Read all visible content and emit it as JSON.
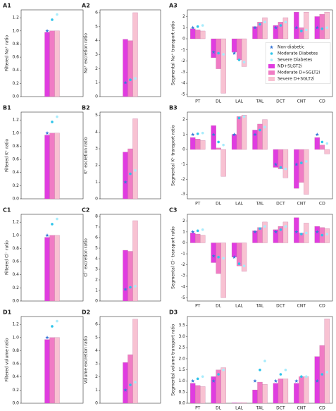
{
  "chart_data": [
    {
      "type": "bar",
      "title": "A1",
      "ylabel": "Filtered Na⁺ ratio",
      "categories": [
        null
      ],
      "ylim": [
        0,
        1.32
      ],
      "yticks": [
        {
          "value": 0,
          "label": "0.0"
        },
        0.2,
        0.4,
        0.6,
        0.8,
        {
          "value": 1,
          "label": "1.0"
        },
        1.2
      ],
      "series": [
        {
          "type": "scatter",
          "marker": "star",
          "color": "#3a78d8",
          "values": [
            1.0
          ]
        },
        {
          "type": "scatter",
          "marker": "circle",
          "color": "#2ec4ea",
          "values": [
            1.17
          ]
        },
        {
          "type": "scatter",
          "marker": "circle",
          "color": "#a8ecfc",
          "values": [
            1.25
          ]
        },
        {
          "type": "bar",
          "color": "#e03ce0",
          "values": [
            0.98
          ]
        },
        {
          "type": "bar",
          "color": "#f07cc4",
          "values": [
            1.0
          ]
        },
        {
          "type": "bar",
          "color": "#f8c2d2",
          "values": [
            1.0
          ]
        }
      ]
    },
    {
      "type": "bar",
      "title": "A2",
      "ylabel": "Na⁺ excretion ratio",
      "categories": [
        null
      ],
      "ylim": [
        0,
        6.2
      ],
      "yticks": [
        0,
        1,
        2,
        3,
        4,
        5,
        6
      ],
      "series": [
        {
          "type": "scatter",
          "marker": "star",
          "color": "#3a78d8",
          "values": [
            1.0
          ]
        },
        {
          "type": "scatter",
          "marker": "circle",
          "color": "#2ec4ea",
          "values": [
            1.2
          ]
        },
        {
          "type": "scatter",
          "marker": "circle",
          "color": "#a8ecfc",
          "values": [
            1.3
          ]
        },
        {
          "type": "bar",
          "color": "#e03ce0",
          "values": [
            4.1
          ]
        },
        {
          "type": "bar",
          "color": "#f07cc4",
          "values": [
            4.0
          ]
        },
        {
          "type": "bar",
          "color": "#f8c2d2",
          "values": [
            6.0
          ]
        }
      ]
    },
    {
      "type": "bar",
      "title": "A3",
      "ylabel": "Segmental Na⁺ transport ratio",
      "categories": [
        "PT",
        "DL",
        "LAL",
        "TAL",
        "DCT",
        "CNT",
        "CD"
      ],
      "ylim": [
        -5.2,
        2.6
      ],
      "yticks": [
        -5,
        -4,
        -3,
        -2,
        -1,
        0,
        1,
        2
      ],
      "legend": "center right",
      "series": [
        {
          "name": "Non-diabetic",
          "type": "scatter",
          "marker": "star",
          "color": "#3a78d8",
          "values": [
            1.0,
            -1.2,
            -1.3,
            1.0,
            1.0,
            1.0,
            1.0
          ]
        },
        {
          "name": "Moderate Diabetes",
          "type": "scatter",
          "marker": "circle",
          "color": "#2ec4ea",
          "values": [
            1.1,
            -1.3,
            -1.9,
            1.3,
            1.2,
            0.7,
            0.9
          ]
        },
        {
          "name": "Severe Diabetes",
          "type": "scatter",
          "marker": "circle",
          "color": "#a8ecfc",
          "values": [
            1.2,
            -1.4,
            -2.1,
            1.5,
            1.5,
            0.8,
            1.0
          ]
        },
        {
          "name": "ND+SLGT2i",
          "type": "bar",
          "color": "#e03ce0",
          "values": [
            0.9,
            -1.7,
            -1.2,
            1.1,
            1.2,
            2.4,
            2.0
          ]
        },
        {
          "name": "Moderate D+SGLT2i",
          "type": "bar",
          "color": "#f07cc4",
          "values": [
            0.8,
            -2.7,
            -1.9,
            1.5,
            1.5,
            1.0,
            2.2
          ]
        },
        {
          "name": "Severe D+SGLT2i",
          "type": "bar",
          "color": "#f8c2d2",
          "values": [
            0.7,
            -4.9,
            -2.5,
            1.9,
            1.9,
            2.4,
            2.4
          ]
        }
      ]
    },
    {
      "type": "bar",
      "title": "B1",
      "ylabel": "Filtered K⁺ ratio",
      "categories": [
        null
      ],
      "ylim": [
        0,
        1.32
      ],
      "yticks": [
        {
          "value": 0,
          "label": "0.0"
        },
        0.2,
        0.4,
        0.6,
        0.8,
        {
          "value": 1,
          "label": "1.0"
        },
        1.2
      ],
      "series": [
        {
          "type": "scatter",
          "marker": "star",
          "color": "#3a78d8",
          "values": [
            1.0
          ]
        },
        {
          "type": "scatter",
          "marker": "circle",
          "color": "#2ec4ea",
          "values": [
            1.17
          ]
        },
        {
          "type": "scatter",
          "marker": "circle",
          "color": "#a8ecfc",
          "values": [
            1.25
          ]
        },
        {
          "type": "bar",
          "color": "#e03ce0",
          "values": [
            0.97
          ]
        },
        {
          "type": "bar",
          "color": "#f07cc4",
          "values": [
            1.0
          ]
        },
        {
          "type": "bar",
          "color": "#f8c2d2",
          "values": [
            1.0
          ]
        }
      ]
    },
    {
      "type": "bar",
      "title": "B2",
      "ylabel": "K⁺ excretion ratio",
      "categories": [
        null
      ],
      "ylim": [
        0,
        5.2
      ],
      "yticks": [
        0,
        1,
        2,
        3,
        4,
        5
      ],
      "series": [
        {
          "type": "scatter",
          "marker": "star",
          "color": "#3a78d8",
          "values": [
            1.0
          ]
        },
        {
          "type": "scatter",
          "marker": "circle",
          "color": "#2ec4ea",
          "values": [
            1.5
          ]
        },
        {
          "type": "scatter",
          "marker": "circle",
          "color": "#a8ecfc",
          "values": [
            1.7
          ]
        },
        {
          "type": "bar",
          "color": "#e03ce0",
          "values": [
            2.8
          ]
        },
        {
          "type": "bar",
          "color": "#f07cc4",
          "values": [
            3.0
          ]
        },
        {
          "type": "bar",
          "color": "#f8c2d2",
          "values": [
            4.8
          ]
        }
      ]
    },
    {
      "type": "bar",
      "title": "B3",
      "ylabel": "Segmental K⁺ transport ratio",
      "categories": [
        "PT",
        "DL",
        "LAL",
        "TAL",
        "DCT",
        "CNT",
        "CD"
      ],
      "ylim": [
        -3.3,
        2.5
      ],
      "yticks": [
        -3,
        -2,
        -1,
        0,
        1,
        2
      ],
      "series": [
        {
          "type": "scatter",
          "marker": "star",
          "color": "#3a78d8",
          "values": [
            1.0,
            1.0,
            1.0,
            1.0,
            -1.0,
            -1.0,
            1.0
          ]
        },
        {
          "type": "scatter",
          "marker": "circle",
          "color": "#2ec4ea",
          "values": [
            1.05,
            0.5,
            2.1,
            1.3,
            -1.2,
            -0.9,
            0.5
          ]
        },
        {
          "type": "scatter",
          "marker": "circle",
          "color": "#a8ecfc",
          "values": [
            1.1,
            0.3,
            2.2,
            1.5,
            -1.3,
            -0.8,
            0.4
          ]
        },
        {
          "type": "bar",
          "color": "#e03ce0",
          "values": [
            0.8,
            1.6,
            1.0,
            1.3,
            -1.2,
            -2.6,
            0.8
          ]
        },
        {
          "type": "bar",
          "color": "#f07cc4",
          "values": [
            0.7,
            0.1,
            2.2,
            1.7,
            -1.3,
            -2.2,
            0.3
          ]
        },
        {
          "type": "bar",
          "color": "#f8c2d2",
          "values": [
            0.6,
            -1.8,
            2.3,
            2.0,
            -1.9,
            -3.0,
            -0.3
          ]
        }
      ]
    },
    {
      "type": "bar",
      "title": "C1",
      "ylabel": "Filtered Cl⁻ ratio",
      "categories": [
        null
      ],
      "ylim": [
        0,
        1.32
      ],
      "yticks": [
        {
          "value": 0,
          "label": "0.0"
        },
        0.2,
        0.4,
        0.6,
        0.8,
        {
          "value": 1,
          "label": "1.0"
        },
        1.2
      ],
      "series": [
        {
          "type": "scatter",
          "marker": "star",
          "color": "#3a78d8",
          "values": [
            1.0
          ]
        },
        {
          "type": "scatter",
          "marker": "circle",
          "color": "#2ec4ea",
          "values": [
            1.17
          ]
        },
        {
          "type": "scatter",
          "marker": "circle",
          "color": "#a8ecfc",
          "values": [
            1.25
          ]
        },
        {
          "type": "bar",
          "color": "#e03ce0",
          "values": [
            0.97
          ]
        },
        {
          "type": "bar",
          "color": "#f07cc4",
          "values": [
            1.0
          ]
        },
        {
          "type": "bar",
          "color": "#f8c2d2",
          "values": [
            1.0
          ]
        }
      ]
    },
    {
      "type": "bar",
      "title": "C2",
      "ylabel": "Cl⁻ excretion ratio",
      "categories": [
        null
      ],
      "ylim": [
        0,
        8.2
      ],
      "yticks": [
        0,
        1,
        2,
        3,
        4,
        5,
        6,
        7,
        8
      ],
      "series": [
        {
          "type": "scatter",
          "marker": "star",
          "color": "#3a78d8",
          "values": [
            1.1
          ]
        },
        {
          "type": "scatter",
          "marker": "circle",
          "color": "#2ec4ea",
          "values": [
            1.3
          ]
        },
        {
          "type": "scatter",
          "marker": "circle",
          "color": "#a8ecfc",
          "values": [
            1.4
          ]
        },
        {
          "type": "bar",
          "color": "#e03ce0",
          "values": [
            4.8
          ]
        },
        {
          "type": "bar",
          "color": "#f07cc4",
          "values": [
            4.7
          ]
        },
        {
          "type": "bar",
          "color": "#f8c2d2",
          "values": [
            7.6
          ]
        }
      ]
    },
    {
      "type": "bar",
      "title": "C3",
      "ylabel": "Segmental Cl⁻ transport ratio",
      "categories": [
        "PT",
        "DL",
        "LAL",
        "TAL",
        "DCT",
        "CNT",
        "CD"
      ],
      "ylim": [
        -5.3,
        2.6
      ],
      "yticks": [
        -5,
        -4,
        -3,
        -2,
        -1,
        0,
        1,
        2
      ],
      "series": [
        {
          "type": "scatter",
          "marker": "star",
          "color": "#3a78d8",
          "values": [
            1.0,
            -1.2,
            -1.3,
            1.0,
            1.0,
            1.0,
            1.0
          ]
        },
        {
          "type": "scatter",
          "marker": "circle",
          "color": "#2ec4ea",
          "values": [
            1.1,
            -1.3,
            -1.9,
            1.3,
            1.2,
            0.8,
            0.7
          ]
        },
        {
          "type": "scatter",
          "marker": "circle",
          "color": "#a8ecfc",
          "values": [
            1.2,
            -1.4,
            -2.1,
            1.5,
            1.5,
            0.9,
            0.8
          ]
        },
        {
          "type": "bar",
          "color": "#e03ce0",
          "values": [
            0.9,
            -1.8,
            -1.3,
            1.1,
            1.2,
            2.3,
            1.5
          ]
        },
        {
          "type": "bar",
          "color": "#f07cc4",
          "values": [
            0.8,
            -2.8,
            -2.1,
            1.4,
            1.5,
            0.9,
            1.4
          ]
        },
        {
          "type": "bar",
          "color": "#f8c2d2",
          "values": [
            0.7,
            -5.0,
            -2.6,
            1.9,
            1.9,
            1.8,
            1.3
          ]
        }
      ]
    },
    {
      "type": "bar",
      "title": "D1",
      "ylabel": "Filtered volume ratio",
      "categories": [
        null
      ],
      "ylim": [
        0,
        1.32
      ],
      "yticks": [
        {
          "value": 0,
          "label": "0.0"
        },
        0.2,
        0.4,
        0.6,
        0.8,
        {
          "value": 1,
          "label": "1.0"
        },
        1.2
      ],
      "series": [
        {
          "type": "scatter",
          "marker": "star",
          "color": "#3a78d8",
          "values": [
            1.0
          ]
        },
        {
          "type": "scatter",
          "marker": "circle",
          "color": "#2ec4ea",
          "values": [
            1.17
          ]
        },
        {
          "type": "scatter",
          "marker": "circle",
          "color": "#a8ecfc",
          "values": [
            1.25
          ]
        },
        {
          "type": "bar",
          "color": "#e03ce0",
          "values": [
            0.97
          ]
        },
        {
          "type": "bar",
          "color": "#f07cc4",
          "values": [
            1.0
          ]
        },
        {
          "type": "bar",
          "color": "#f8c2d2",
          "values": [
            1.0
          ]
        }
      ]
    },
    {
      "type": "bar",
      "title": "D2",
      "ylabel": "Volume excretion ratio",
      "categories": [
        null
      ],
      "ylim": [
        0,
        6.6
      ],
      "yticks": [
        0,
        1,
        2,
        3,
        4,
        5,
        6
      ],
      "series": [
        {
          "type": "scatter",
          "marker": "star",
          "color": "#3a78d8",
          "values": [
            1.0
          ]
        },
        {
          "type": "scatter",
          "marker": "circle",
          "color": "#2ec4ea",
          "values": [
            1.4
          ]
        },
        {
          "type": "scatter",
          "marker": "circle",
          "color": "#a8ecfc",
          "values": [
            1.6
          ]
        },
        {
          "type": "bar",
          "color": "#e03ce0",
          "values": [
            3.1
          ]
        },
        {
          "type": "bar",
          "color": "#f07cc4",
          "values": [
            3.7
          ]
        },
        {
          "type": "bar",
          "color": "#f8c2d2",
          "values": [
            6.4
          ]
        }
      ]
    },
    {
      "type": "bar",
      "title": "D3",
      "ylabel": "Segmental volume transport ratio",
      "categories": [
        "PT",
        "DL",
        "LAL",
        "TAL",
        "DCT",
        "CNT",
        "CD"
      ],
      "ylim": [
        0,
        3.9
      ],
      "yticks": [
        {
          "value": 0,
          "label": "0.0"
        },
        0.5,
        {
          "value": 1,
          "label": "1.0"
        },
        1.5,
        {
          "value": 2,
          "label": "2.0"
        },
        2.5,
        {
          "value": 3,
          "label": "3.0"
        },
        3.5
      ],
      "series": [
        {
          "type": "scatter",
          "marker": "star",
          "color": "#3a78d8",
          "values": [
            1.0,
            1.0,
            null,
            1.0,
            1.0,
            1.0,
            1.0
          ]
        },
        {
          "type": "scatter",
          "marker": "circle",
          "color": "#2ec4ea",
          "values": [
            1.1,
            1.3,
            null,
            1.5,
            1.3,
            1.2,
            1.3
          ]
        },
        {
          "type": "scatter",
          "marker": "circle",
          "color": "#a8ecfc",
          "values": [
            1.2,
            1.5,
            null,
            1.9,
            1.5,
            1.2,
            1.4
          ]
        },
        {
          "type": "bar",
          "color": "#e03ce0",
          "values": [
            0.9,
            1.2,
            0.02,
            0.6,
            0.9,
            0.9,
            2.1
          ]
        },
        {
          "type": "bar",
          "color": "#f07cc4",
          "values": [
            0.8,
            1.5,
            0.02,
            0.95,
            1.1,
            1.2,
            2.6
          ]
        },
        {
          "type": "bar",
          "color": "#f8c2d2",
          "values": [
            0.75,
            1.6,
            0.03,
            0.85,
            1.1,
            1.2,
            3.8
          ]
        }
      ]
    }
  ]
}
